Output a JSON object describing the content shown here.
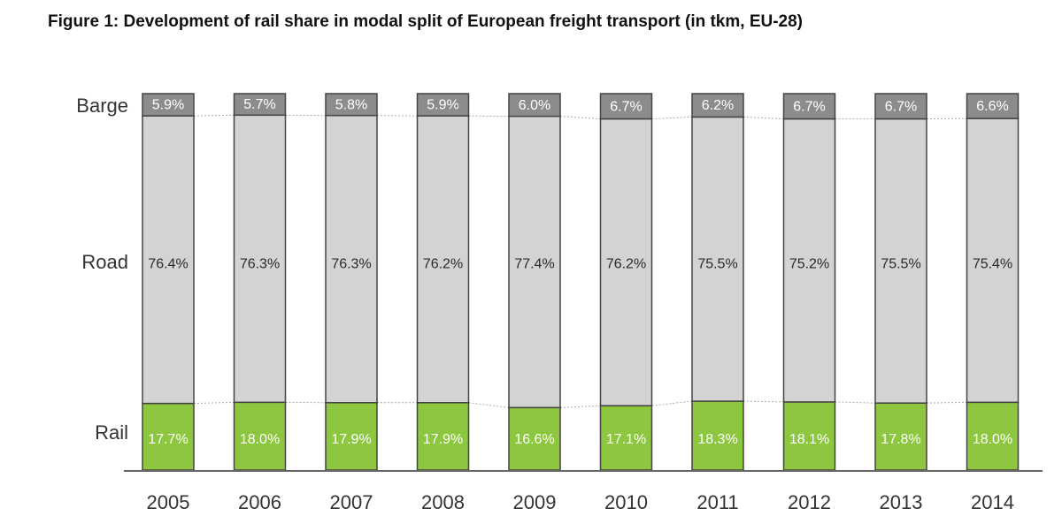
{
  "title": "Figure 1: Development of rail share in modal split of European freight transport (in tkm, EU-28)",
  "chart_data": {
    "type": "bar",
    "stacked": true,
    "title": "Figure 1: Development of rail share in modal split of European freight transport (in tkm, EU-28)",
    "categories": [
      "2005",
      "2006",
      "2007",
      "2008",
      "2009",
      "2010",
      "2011",
      "2012",
      "2013",
      "2014"
    ],
    "series": [
      {
        "name": "Rail",
        "color": "#8dc63f",
        "values": [
          17.7,
          18.0,
          17.9,
          17.9,
          16.6,
          17.1,
          18.3,
          18.1,
          17.8,
          18.0
        ],
        "labels": [
          "17.7%",
          "18.0%",
          "17.9%",
          "17.9%",
          "16.6%",
          "17.1%",
          "18.3%",
          "18.1%",
          "17.8%",
          "18.0%"
        ]
      },
      {
        "name": "Road",
        "color": "#d3d3d4",
        "values": [
          76.4,
          76.3,
          76.3,
          76.2,
          77.4,
          76.2,
          75.5,
          75.2,
          75.5,
          75.4
        ],
        "labels": [
          "76.4%",
          "76.3%",
          "76.3%",
          "76.2%",
          "77.4%",
          "76.2%",
          "75.5%",
          "75.2%",
          "75.5%",
          "75.4%"
        ]
      },
      {
        "name": "Barge",
        "color": "#8c8c8e",
        "values": [
          5.9,
          5.7,
          5.8,
          5.9,
          6.0,
          6.7,
          6.2,
          6.7,
          6.7,
          6.6
        ],
        "labels": [
          "5.9%",
          "5.7%",
          "5.8%",
          "5.9%",
          "6.0%",
          "6.7%",
          "6.2%",
          "6.7%",
          "6.7%",
          "6.6%"
        ]
      }
    ],
    "ylim": [
      0,
      100
    ],
    "grid": false,
    "legend": "left-row-labels"
  }
}
